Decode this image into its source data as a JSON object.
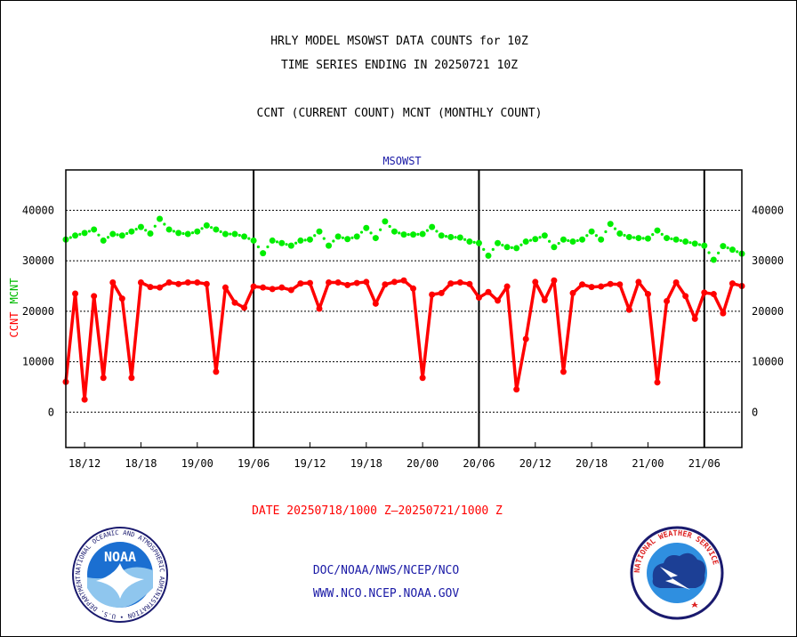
{
  "titles": {
    "line1": "HRLY MODEL MSOWST DATA COUNTS for 10Z",
    "line2": "TIME SERIES ENDING IN 20250721 10Z",
    "line3": "CCNT (CURRENT COUNT) MCNT (MONTHLY COUNT)"
  },
  "footer": {
    "date_range": "DATE 20250718/1000 Z‒20250721/1000 Z",
    "org": "DOC/NOAA/NWS/NCEP/NCO",
    "url": "WWW.NCO.NCEP.NOAA.GOV"
  },
  "logos": {
    "noaa_text": "NOAA",
    "noaa_ring": "NATIONAL OCEANIC AND ATMOSPHERIC ADMINISTRATION • U.S. DEPARTMENT OF COMMERCE",
    "nws_ring": "NATIONAL WEATHER SERVICE"
  },
  "colors": {
    "ccnt": "#ff0000",
    "mcnt": "#00ee00",
    "series_label": "#1a1aa6",
    "grid": "#000000"
  },
  "chart_data": {
    "type": "line",
    "series_label": "MSOWST",
    "ylabel_ccnt": "CCNT",
    "ylabel_mcnt": "MCNT",
    "ylim": [
      -7000,
      48000
    ],
    "yticks": [
      0,
      10000,
      20000,
      30000,
      40000
    ],
    "ytick_labels": [
      "0",
      "10000",
      "20000",
      "30000",
      "40000"
    ],
    "x_hours_range": [
      0,
      72
    ],
    "xticks": [
      {
        "hour": 2,
        "label": "18/12"
      },
      {
        "hour": 8,
        "label": "18/18"
      },
      {
        "hour": 14,
        "label": "19/00"
      },
      {
        "hour": 20,
        "label": "19/06"
      },
      {
        "hour": 26,
        "label": "19/12"
      },
      {
        "hour": 32,
        "label": "19/18"
      },
      {
        "hour": 38,
        "label": "20/00"
      },
      {
        "hour": 44,
        "label": "20/06"
      },
      {
        "hour": 50,
        "label": "20/12"
      },
      {
        "hour": 56,
        "label": "20/18"
      },
      {
        "hour": 62,
        "label": "21/00"
      },
      {
        "hour": 68,
        "label": "21/06"
      }
    ],
    "day_boundaries_hours": [
      20,
      44,
      68
    ],
    "series": [
      {
        "name": "MCNT",
        "values": [
          34200,
          35000,
          35500,
          36200,
          34000,
          35300,
          35000,
          35800,
          36700,
          35400,
          38300,
          36200,
          35500,
          35300,
          35800,
          37000,
          36200,
          35300,
          35300,
          34800,
          34000,
          31500,
          34000,
          33500,
          33000,
          34000,
          34200,
          35800,
          33000,
          34800,
          34300,
          34800,
          36500,
          34500,
          37800,
          35800,
          35200,
          35200,
          35300,
          36700,
          35000,
          34700,
          34600,
          33800,
          33500,
          31000,
          33500,
          32700,
          32500,
          33800,
          34300,
          35000,
          32700,
          34200,
          33800,
          34200,
          35800,
          34200,
          37300,
          35400,
          34700,
          34500,
          34400,
          36000,
          34500,
          34200,
          33800,
          33400,
          33000,
          30200,
          32900,
          32200,
          31400
        ]
      },
      {
        "name": "CCNT",
        "values": [
          6000,
          23500,
          2500,
          23000,
          6800,
          25700,
          22500,
          6800,
          25700,
          24800,
          24700,
          25700,
          25400,
          25700,
          25700,
          25400,
          8000,
          24700,
          21700,
          20700,
          24900,
          24700,
          24400,
          24700,
          24200,
          25500,
          25600,
          20500,
          25700,
          25700,
          25200,
          25600,
          25800,
          21500,
          25300,
          25800,
          26100,
          24500,
          6800,
          23300,
          23600,
          25500,
          25700,
          25400,
          22700,
          23800,
          22100,
          24900,
          4500,
          14500,
          25800,
          22200,
          26100,
          8000,
          23600,
          25300,
          24800,
          24900,
          25400,
          25300,
          20300,
          25800,
          23400,
          5900,
          22000,
          25700,
          23000,
          18500,
          23700,
          23400,
          19600,
          25500,
          25000
        ]
      }
    ]
  }
}
